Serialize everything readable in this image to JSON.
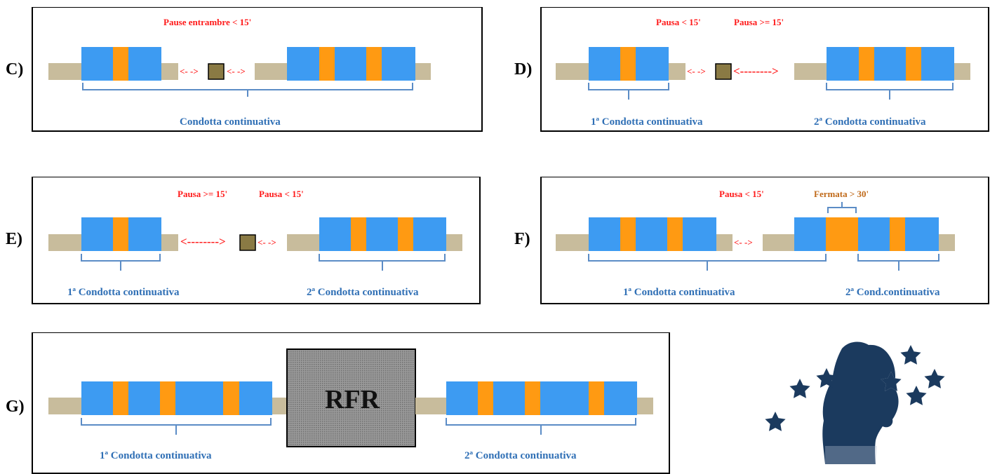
{
  "panels": {
    "C": {
      "label": "C)",
      "top": "Pause entrambre < 15'",
      "arrow1": "<- ->",
      "arrow2": "<- ->",
      "bottom": "Condotta continuativa"
    },
    "D": {
      "label": "D)",
      "top1": "Pausa < 15'",
      "top2": "Pausa >=  15'",
      "arrow1": "<- ->",
      "arrow2": "<-------->",
      "bottom1": "1ª Condotta continuativa",
      "bottom2": "2ª Condotta continuativa"
    },
    "E": {
      "label": "E)",
      "top1": "Pausa >=  15'",
      "top2": "Pausa < 15'",
      "arrow1": "<-------->",
      "arrow2": "<- ->",
      "bottom1": "1ª Condotta continuativa",
      "bottom2": "2ª Condotta continuativa"
    },
    "F": {
      "label": "F)",
      "top1": "Pausa < 15'",
      "top2": "Fermata > 30'",
      "arrow1": "<- ->",
      "bottom1": "1ª Condotta continuativa",
      "bottom2": "2ª Cond.continuativa"
    },
    "G": {
      "label": "G)",
      "rfr": "RFR",
      "bottom1": "1ª Condotta continuativa",
      "bottom2": "2ª Condotta continuativa"
    }
  },
  "colors": {
    "driving": "#3d9bf2",
    "stop": "#ff9a12",
    "rest": "#c8bc9c",
    "pause_box": "#8a7a44",
    "brace": "#5b8cc6",
    "rfr_fill": "#8c8c8c",
    "logo": "#1b3a5e"
  },
  "icons": {
    "logo": "bear-with-stars-logo"
  }
}
